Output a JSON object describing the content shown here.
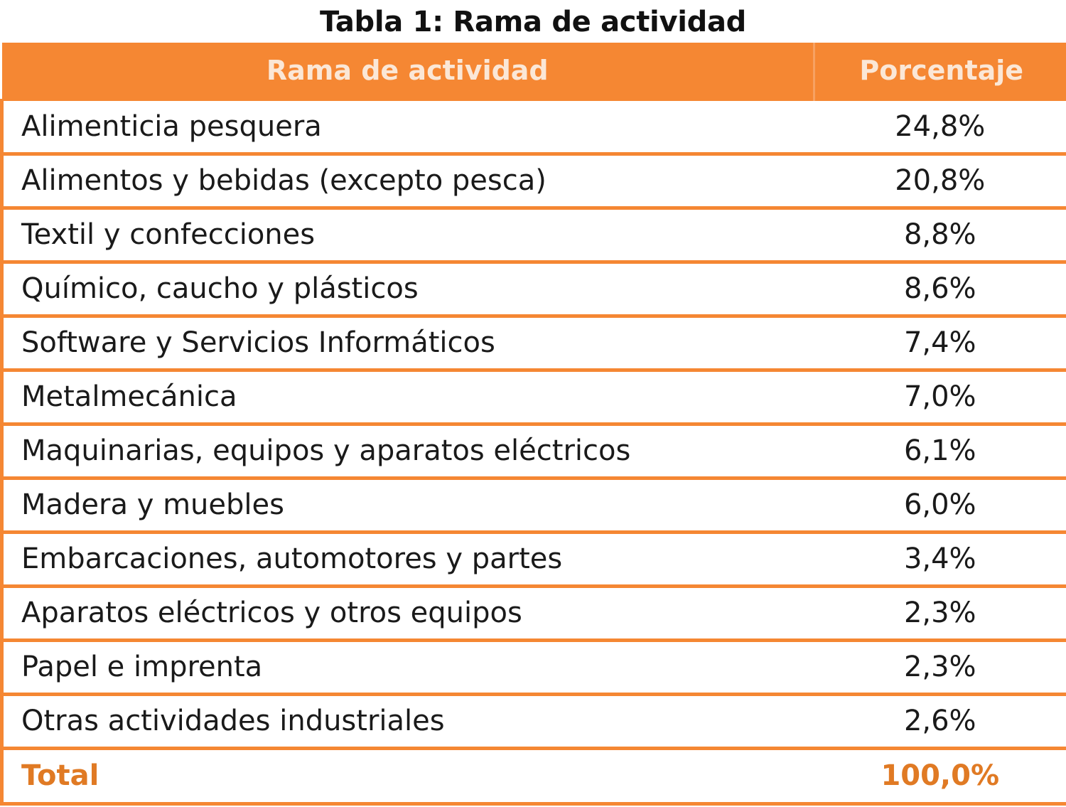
{
  "caption": "Tabla 1: Rama de actividad",
  "table": {
    "headers": [
      "Rama de actividad",
      "Porcentaje"
    ],
    "rows": [
      {
        "rama": "Alimenticia pesquera",
        "porcentaje": "24,8%"
      },
      {
        "rama": "Alimentos y bebidas (excepto pesca)",
        "porcentaje": "20,8%"
      },
      {
        "rama": "Textil y confecciones",
        "porcentaje": "8,8%"
      },
      {
        "rama": "Químico, caucho y plásticos",
        "porcentaje": "8,6%"
      },
      {
        "rama": "Software y Servicios Informáticos",
        "porcentaje": "7,4%"
      },
      {
        "rama": "Metalmecánica",
        "porcentaje": "7,0%"
      },
      {
        "rama": "Maquinarias, equipos y aparatos eléctricos",
        "porcentaje": "6,1%"
      },
      {
        "rama": "Madera y muebles",
        "porcentaje": "6,0%"
      },
      {
        "rama": "Embarcaciones, automotores y partes",
        "porcentaje": "3,4%"
      },
      {
        "rama": "Aparatos eléctricos y otros equipos",
        "porcentaje": "2,3%"
      },
      {
        "rama": "Papel e imprenta",
        "porcentaje": "2,3%"
      },
      {
        "rama": "Otras actividades industriales",
        "porcentaje": "2,6%"
      }
    ],
    "total": {
      "label": "Total",
      "value": "100,0%"
    }
  },
  "colors": {
    "header_bg": "#f58733",
    "header_text": "#fbe7d6",
    "border": "#f58733",
    "total_text": "#e07a24"
  }
}
